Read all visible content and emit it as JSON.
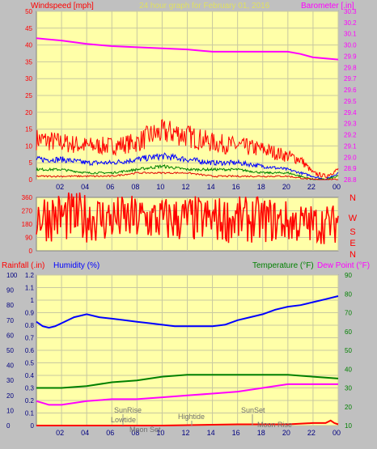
{
  "header": {
    "title": "24 hour graph for   February 01, 2016",
    "left_label": "Windspeed [mph]",
    "right_label": "Barometer [.in]"
  },
  "colors": {
    "background": "#c0c0c0",
    "plot_bg": "#ffffa8",
    "grid": "#c8c8a0",
    "wind": "#ff0000",
    "gust": "#ff0000",
    "wind_blue": "#0000ff",
    "wind_green": "#008000",
    "barometer": "#ff00ff",
    "humidity": "#0000ff",
    "temperature": "#008000",
    "dewpoint": "#ff00ff",
    "rainfall": "#ff0000",
    "annotation": "#707070"
  },
  "x_ticks": [
    "02",
    "04",
    "06",
    "08",
    "10",
    "12",
    "14",
    "16",
    "18",
    "20",
    "22",
    "00"
  ],
  "compass": [
    "N",
    "W",
    "S",
    "E",
    "N"
  ],
  "panel3_labels": {
    "rain": "Rainfall (.in)",
    "humidity": "Humidity (%)",
    "temperature": "Temperature (°F)",
    "dewpoint": "Dew Point (°F)"
  },
  "annotations": {
    "sunrise": "SunRise",
    "lowtide": "Lowtide",
    "moonset": "Moon Set",
    "hightide": "Hightide",
    "sunset": "SunSet",
    "moonrise": "Moon Rise"
  },
  "chart_data": [
    {
      "type": "line",
      "title": "24 hour graph for   February 01, 2016",
      "x_unit": "hour",
      "x_ticks": [
        "02",
        "04",
        "06",
        "08",
        "10",
        "12",
        "14",
        "16",
        "18",
        "20",
        "22",
        "00"
      ],
      "y_left": {
        "label": "Windspeed [mph]",
        "range": [
          0,
          50
        ],
        "ticks": [
          0,
          5,
          10,
          15,
          20,
          25,
          30,
          35,
          40,
          45,
          50
        ]
      },
      "y_right": {
        "label": "Barometer [.in]",
        "range": [
          28.8,
          30.3
        ],
        "ticks": [
          28.8,
          28.9,
          29.0,
          29.1,
          29.2,
          29.3,
          29.4,
          29.5,
          29.6,
          29.7,
          29.8,
          29.9,
          30.0,
          30.1,
          30.2,
          30.3
        ]
      },
      "series": [
        {
          "axis": "right",
          "x": [
            0,
            1,
            2,
            4,
            6,
            8,
            10,
            12,
            14,
            16,
            18,
            19,
            20,
            21,
            22,
            23,
            24
          ],
          "values": [
            30.06,
            30.05,
            30.04,
            30.01,
            29.99,
            29.98,
            29.97,
            29.96,
            29.94,
            29.94,
            29.94,
            29.94,
            29.94,
            29.92,
            29.89,
            29.88,
            29.87
          ]
        },
        {
          "axis": "left",
          "x": [
            0,
            2,
            4,
            6,
            8,
            9,
            10,
            11,
            12,
            13,
            14,
            16,
            18,
            20,
            21,
            22,
            23,
            24
          ],
          "values": [
            12,
            11,
            10,
            10,
            11,
            13,
            14,
            14,
            13,
            12,
            11,
            10,
            9,
            7,
            6,
            2,
            1,
            3
          ]
        },
        {
          "axis": "left",
          "x": [
            0,
            2,
            4,
            6,
            8,
            10,
            12,
            14,
            16,
            18,
            20,
            22,
            23,
            24
          ],
          "values": [
            6,
            6,
            5,
            5,
            6,
            7,
            6,
            5,
            5,
            4,
            3,
            1,
            0,
            2
          ]
        },
        {
          "axis": "left",
          "x": [
            0,
            2,
            4,
            6,
            8,
            10,
            12,
            14,
            16,
            18,
            20,
            22,
            23,
            24
          ],
          "values": [
            3,
            3,
            2,
            2,
            3,
            4,
            3,
            3,
            3,
            2,
            2,
            0,
            0,
            1
          ]
        },
        {
          "axis": "left",
          "x": [
            0,
            2,
            4,
            6,
            8,
            10,
            12,
            14,
            16,
            18,
            20,
            22,
            23,
            24
          ],
          "values": [
            1,
            1,
            1,
            1,
            2,
            2,
            2,
            1,
            1,
            1,
            1,
            0,
            0,
            0
          ]
        }
      ]
    },
    {
      "type": "line",
      "y_left": {
        "range": [
          0,
          360
        ],
        "ticks": [
          0,
          90,
          180,
          270,
          360
        ]
      },
      "series": [
        {
          "x": [
            0,
            2,
            4,
            6,
            8,
            10,
            12,
            14,
            16,
            18,
            20,
            21,
            22,
            23,
            23.8,
            24
          ],
          "values": [
            240,
            230,
            225,
            215,
            215,
            210,
            215,
            210,
            210,
            210,
            195,
            185,
            180,
            180,
            180,
            240
          ]
        }
      ]
    },
    {
      "type": "line",
      "y_axes": {
        "rain": {
          "range": [
            0,
            1.2
          ],
          "ticks": [
            0,
            0.1,
            0.2,
            0.3,
            0.4,
            0.5,
            0.6,
            0.7,
            0.8,
            0.9,
            1,
            1.1,
            1.2
          ]
        },
        "humidity": {
          "range": [
            0,
            100
          ],
          "ticks": [
            0,
            10,
            20,
            30,
            40,
            50,
            60,
            70,
            80,
            90,
            100
          ]
        },
        "temperature": {
          "range": [
            10,
            90
          ],
          "ticks": [
            10,
            20,
            30,
            40,
            50,
            60,
            70,
            80,
            90
          ]
        }
      },
      "series": [
        {
          "axis": "humidity",
          "x": [
            0,
            0.5,
            1,
            1.5,
            2,
            3,
            4,
            5,
            6,
            7,
            8,
            9,
            10,
            11,
            12,
            13,
            14,
            15,
            16,
            17,
            18,
            19,
            20,
            21,
            22,
            23,
            24
          ],
          "values": [
            69,
            66,
            65,
            66,
            68,
            72,
            74,
            72,
            71,
            70,
            69,
            68,
            67,
            66,
            66,
            66,
            66,
            67,
            70,
            72,
            74,
            77,
            79,
            80,
            82,
            84,
            86
          ]
        },
        {
          "axis": "temperature",
          "x": [
            0,
            2,
            4,
            6,
            8,
            10,
            12,
            14,
            16,
            18,
            20,
            22,
            24
          ],
          "values": [
            30,
            30,
            31,
            33,
            34,
            36,
            37,
            37,
            37,
            37,
            37,
            36,
            35
          ]
        },
        {
          "axis": "temperature",
          "x": [
            0,
            0.5,
            1,
            2,
            4,
            6,
            8,
            10,
            12,
            14,
            16,
            18,
            20,
            22,
            24
          ],
          "values": [
            23,
            22,
            21,
            21,
            23,
            24,
            24,
            25,
            26,
            27,
            28,
            30,
            32,
            32,
            32
          ]
        },
        {
          "axis": "rain",
          "x": [
            0,
            8,
            10,
            16,
            20,
            22,
            23,
            23.4,
            23.7,
            24
          ],
          "values": [
            0,
            0,
            0,
            0.01,
            0.01,
            0.02,
            0.02,
            0.04,
            0.02,
            0.01
          ]
        }
      ]
    }
  ]
}
